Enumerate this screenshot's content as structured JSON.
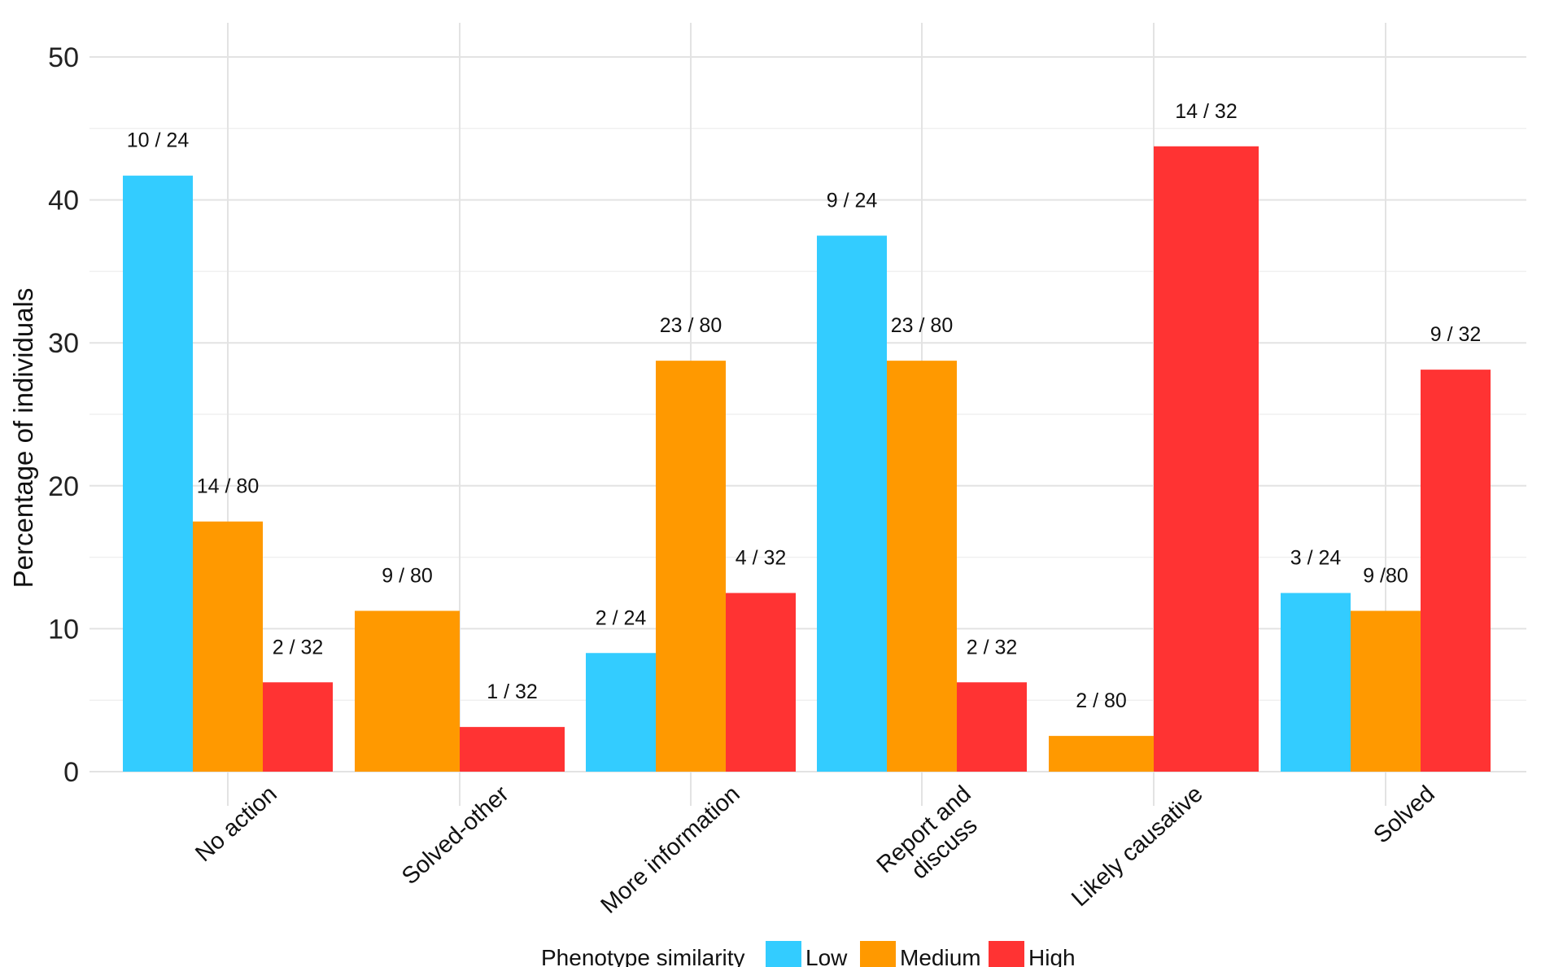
{
  "chart_data": {
    "type": "bar",
    "title": "",
    "xlabel": "",
    "ylabel": "Percentage of individuals",
    "ylim": [
      0,
      50
    ],
    "yticks": [
      0,
      10,
      20,
      30,
      40,
      50
    ],
    "grid": true,
    "legend_position": "bottom",
    "legend_title": "Phenotype similarity",
    "categories": [
      [
        "No action"
      ],
      [
        "Solved-other"
      ],
      [
        "More information"
      ],
      [
        "Report and",
        "discuss"
      ],
      [
        "Likely causative"
      ],
      [
        "Solved"
      ]
    ],
    "series": [
      {
        "name": "Low",
        "color": "#33CCFF",
        "values": [
          41.7,
          null,
          8.3,
          37.5,
          null,
          12.5
        ],
        "labels": [
          "10 / 24",
          "",
          "2 / 24",
          "9 / 24",
          "",
          "3 / 24"
        ]
      },
      {
        "name": "Medium",
        "color": "#FF9900",
        "values": [
          17.5,
          11.25,
          28.75,
          28.75,
          2.5,
          11.25
        ],
        "labels": [
          "14 / 80",
          "9 / 80",
          "23 / 80",
          "23 / 80",
          "2 / 80",
          "9 /80"
        ]
      },
      {
        "name": "High",
        "color": "#FF3333",
        "values": [
          6.25,
          3.125,
          12.5,
          6.25,
          43.75,
          28.125
        ],
        "labels": [
          "2 / 32",
          "1 / 32",
          "4 / 32",
          "2 / 32",
          "14 / 32",
          "9 / 32"
        ]
      }
    ]
  }
}
